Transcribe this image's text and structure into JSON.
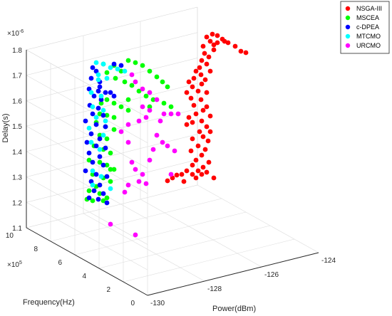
{
  "chart_data": {
    "type": "scatter",
    "title": "",
    "xlabel": "Power(dBm)",
    "ylabel": "Frequency(Hz)",
    "zlabel": "Delay(s)",
    "x_ticks": [
      "-130",
      "-128",
      "-126",
      "-124"
    ],
    "y_ticks": [
      "0",
      "2",
      "4",
      "6",
      "8",
      "10"
    ],
    "y_exponent": "×10",
    "y_exponent_power": "5",
    "z_ticks": [
      "1.1",
      "1.2",
      "1.3",
      "1.4",
      "1.5",
      "1.6",
      "1.7",
      "1.8"
    ],
    "z_exponent": "×10",
    "z_exponent_power": "-6",
    "xlim": [
      -130,
      -124
    ],
    "ylim": [
      0,
      1000000
    ],
    "zlim": [
      1.1e-06,
      1.8e-06
    ],
    "grid": true,
    "legend_position": "top-right",
    "series": [
      {
        "name": "NSGA-III",
        "color": "#ff0000"
      },
      {
        "name": "MSCEA",
        "color": "#00ff00"
      },
      {
        "name": "c-DPEA",
        "color": "#0000ff"
      },
      {
        "name": "MTCMO",
        "color": "#00ffff"
      },
      {
        "name": "URCMO",
        "color": "#ff00ff"
      }
    ]
  }
}
